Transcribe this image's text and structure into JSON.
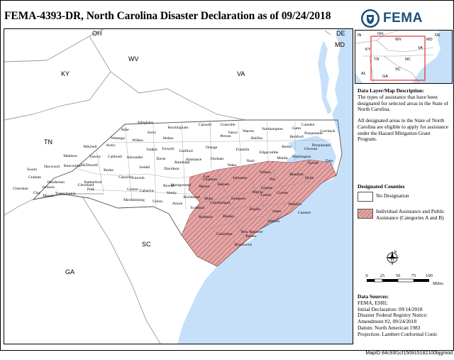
{
  "title": "FEMA-4393-DR, North Carolina Disaster Declaration as of 09/24/2018",
  "agency": "FEMA",
  "colors": {
    "water": "#c6e0f9",
    "land": "#ffffff",
    "designated_fill": "#e3a6a6",
    "designated_hatch": "#b04848",
    "boundary": "#9a9a9a",
    "inset_box": "#e02020",
    "fema_blue": "#1f4e79"
  },
  "map": {
    "state_labels": [
      "OH",
      "DE",
      "MD",
      "WV",
      "KY",
      "VA",
      "TN",
      "SC",
      "GA"
    ],
    "counties_undesignated": [
      "Alleghany",
      "Ashe",
      "Surry",
      "Rockingham",
      "Caswell",
      "Granville",
      "Person",
      "Warren",
      "Northampton",
      "Gates",
      "Camden",
      "Currituck",
      "Watauga",
      "Wilkes",
      "Stokes",
      "Hertford",
      "Vance",
      "Halifax",
      "Perquimans",
      "Pasquotank",
      "Avery",
      "Mitchell",
      "Yadkin",
      "Forsyth",
      "Guilford",
      "Orange",
      "Chowan",
      "Bertie",
      "Franklin",
      "Edgecombe",
      "Caldwell",
      "Madison",
      "Yancey",
      "Alexander",
      "Davie",
      "Alamance",
      "Durham",
      "Nash",
      "Martin",
      "Washington",
      "Tyrrell",
      "Dare",
      "Haywood",
      "Buncombe",
      "McDowell",
      "Iredell",
      "Davidson",
      "Randolph",
      "Wake",
      "Swain",
      "Burke",
      "Catawba",
      "Rowan",
      "Chatham",
      "Graham",
      "Rutherford",
      "Cleveland",
      "Lincoln",
      "Cabarrus",
      "Stanly",
      "Montgomery",
      "Jackson",
      "Henderson",
      "Polk",
      "Gaston",
      "Mecklenburg",
      "Union",
      "Anson",
      "Cherokee",
      "Clay",
      "Macon",
      "Transylvania"
    ],
    "counties_designated": [
      "Lee",
      "Harnett",
      "Johnston",
      "Wilson",
      "Pitt",
      "Beaufort",
      "Hyde",
      "Greene",
      "Wayne",
      "Lenoir",
      "Craven",
      "Moore",
      "Hoke",
      "Cumberland",
      "Sampson",
      "Duplin",
      "Jones",
      "Pamlico",
      "Carteret",
      "Onslow",
      "Richmond",
      "Scotland",
      "Robeson",
      "Bladen",
      "Pender",
      "Columbus",
      "New Hanover",
      "Brunswick"
    ],
    "inset_labels": [
      "OH",
      "IN",
      "WV",
      "DE",
      "MD",
      "KY",
      "VA",
      "TN",
      "NC",
      "SC",
      "GA",
      "AL"
    ]
  },
  "side": {
    "layer_heading": "Data Layer/Map Description:",
    "layer_text": "The types of assistance that have been designated for selected areas in the State of North Carolina.",
    "hmgp_text": "All designated areas in the State of North Carolina are eligible to apply for assistance under the Hazard Mitigation Grant Program.",
    "legend_title": "Designated Counties",
    "legend": [
      {
        "label": "No Designation"
      },
      {
        "label": "Individual Assistance and Public Assistance (Categories A and B)"
      }
    ],
    "scale_ticks": [
      "0",
      "25",
      "50",
      "75",
      "100"
    ],
    "scale_unit": "Miles",
    "north_label": "N",
    "sources_heading": "Data Sources:",
    "sources": [
      "FEMA, ESRI;",
      "Initial Declaration: 09/14/2018",
      "Disaster Federal Registry Notice:",
      "Amendment #2, 09/24/2018",
      "Datum: North American 1983",
      "Projection: Lambert Conformal Conic"
    ]
  },
  "map_id": "MapID 84c93f1cf150915182100bjgmod"
}
